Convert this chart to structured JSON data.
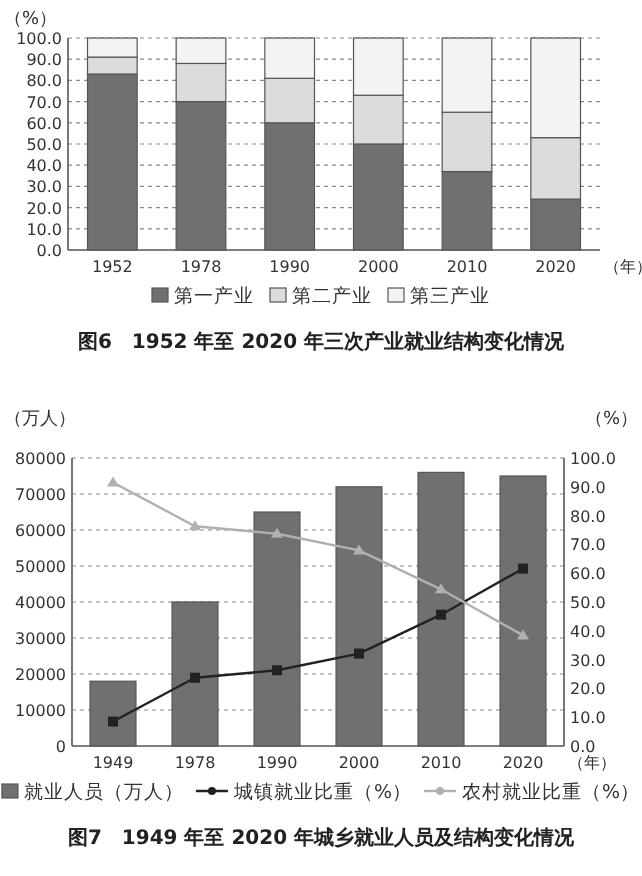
{
  "chart_data": [
    {
      "type": "bar",
      "stacked": true,
      "title": "图6　1952 年至 2020 年三次产业就业结构变化情况",
      "xlabel": "（年）",
      "ylabel": "（%）",
      "categories": [
        "1952",
        "1978",
        "1990",
        "2000",
        "2010",
        "2020"
      ],
      "series": [
        {
          "name": "第一产业",
          "color": "#707070",
          "values": [
            83,
            70,
            60,
            50,
            37,
            24
          ]
        },
        {
          "name": "第二产业",
          "color": "#dcdcdc",
          "values": [
            8,
            18,
            21,
            23,
            28,
            29
          ]
        },
        {
          "name": "第三产业",
          "color": "#f3f3f3",
          "values": [
            9,
            12,
            19,
            27,
            35,
            47
          ]
        }
      ],
      "ylim": [
        0,
        100
      ],
      "yticks": [
        {
          "value": 0,
          "label": "0.0"
        },
        {
          "value": 10,
          "label": "10.0"
        },
        {
          "value": 20,
          "label": "20.0"
        },
        {
          "value": 30,
          "label": "30.0"
        },
        {
          "value": 40,
          "label": "40.0"
        },
        {
          "value": 50,
          "label": "50.0"
        },
        {
          "value": 60,
          "label": "60.0"
        },
        {
          "value": 70,
          "label": "70.0"
        },
        {
          "value": 80,
          "label": "80.0"
        },
        {
          "value": 90,
          "label": "90.0"
        },
        {
          "value": 100,
          "label": "100.0"
        }
      ],
      "grid": "y",
      "legend": "bottom"
    },
    {
      "type": "bar",
      "title": "图7　1949 年至 2020 年城乡就业人员及结构变化情况",
      "xlabel": "（年）",
      "ylabel": "（万人）",
      "y2label": "（%）",
      "categories": [
        "1949",
        "1978",
        "1990",
        "2000",
        "2010",
        "2020"
      ],
      "series": [
        {
          "name": "就业人员（万人）",
          "color": "#707070",
          "values": [
            18000,
            40000,
            65000,
            72000,
            76000,
            75000
          ]
        },
        {
          "name": "城镇就业比重（%）",
          "type": "line",
          "axis": "y2",
          "marker": "square",
          "color": "#222222",
          "values": [
            8.5,
            23.7,
            26.3,
            32.1,
            45.6,
            61.6
          ]
        },
        {
          "name": "农村就业比重（%）",
          "type": "line",
          "axis": "y2",
          "marker": "triangle",
          "color": "#b0b0b0",
          "values": [
            91.5,
            76.3,
            73.7,
            67.9,
            54.4,
            38.4
          ]
        }
      ],
      "ylim": [
        0,
        80000
      ],
      "yticks": [
        0,
        10000,
        20000,
        30000,
        40000,
        50000,
        60000,
        70000,
        80000
      ],
      "y2lim": [
        0,
        100
      ],
      "y2ticks": [
        {
          "value": 0,
          "label": "0.0"
        },
        {
          "value": 10,
          "label": "10.0"
        },
        {
          "value": 20,
          "label": "20.0"
        },
        {
          "value": 30,
          "label": "30.0"
        },
        {
          "value": 40,
          "label": "40.0"
        },
        {
          "value": 50,
          "label": "50.0"
        },
        {
          "value": 60,
          "label": "60.0"
        },
        {
          "value": 70,
          "label": "70.0"
        },
        {
          "value": 80,
          "label": "80.0"
        },
        {
          "value": 90,
          "label": "90.0"
        },
        {
          "value": 100,
          "label": "100.0"
        }
      ],
      "grid": "y",
      "legend": "bottom"
    }
  ]
}
